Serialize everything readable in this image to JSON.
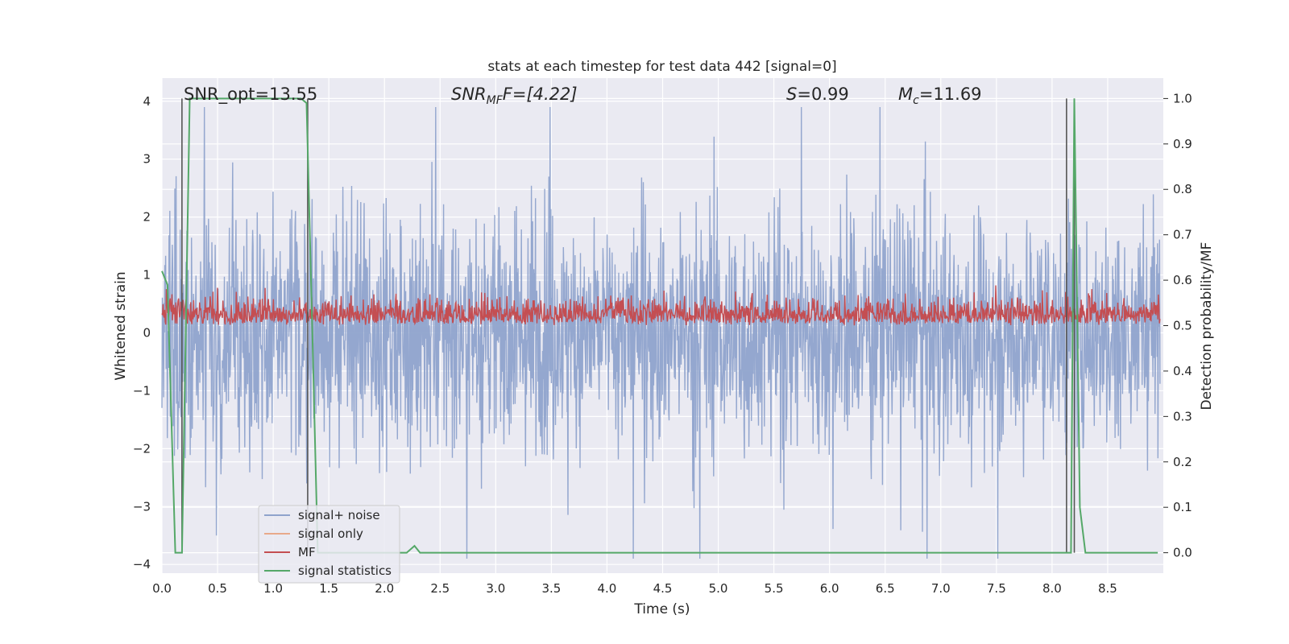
{
  "chart_data": {
    "type": "line",
    "title": "stats at each timestep for test data 442 [signal=0]",
    "xlabel": "Time (s)",
    "ylabel": "Whitened strain",
    "y2label": "Detection probability/MF",
    "xlim": [
      0.0,
      9.0
    ],
    "ylim": [
      -4.15,
      4.4
    ],
    "y2lim": [
      -0.045,
      1.045
    ],
    "xticks": [
      "0.0",
      "0.5",
      "1.0",
      "1.5",
      "2.0",
      "2.5",
      "3.0",
      "3.5",
      "4.0",
      "4.5",
      "5.0",
      "5.5",
      "6.0",
      "6.5",
      "7.0",
      "7.5",
      "8.0",
      "8.5"
    ],
    "yticks": [
      "−4",
      "−3",
      "−2",
      "−1",
      "0",
      "1",
      "2",
      "3",
      "4"
    ],
    "y2ticks": [
      "0.0",
      "0.1",
      "0.2",
      "0.3",
      "0.4",
      "0.5",
      "0.6",
      "0.7",
      "0.8",
      "0.9",
      "1.0"
    ],
    "grid": true,
    "legend_position": "lower-left",
    "annotations": {
      "snr_opt": "SNR_opt=13.55",
      "snr_mf_sym": "SNR",
      "snr_mf_sub": "MF",
      "snr_mf_rest": "F=[4.22]",
      "s_sym": "S",
      "s_rest": "=0.99",
      "mc_sym": "M",
      "mc_sub": "c",
      "mc_rest": "=11.69"
    },
    "series": [
      {
        "name": "signal+ noise",
        "color": "#8fa3cc",
        "description_values": "noise band approx ±1.5 with peaks to ±3.9",
        "envelope": [
          -3.9,
          3.9
        ]
      },
      {
        "name": "signal only",
        "color": "#e8a98a",
        "values": [
          0
        ]
      },
      {
        "name": "MF",
        "color": "#c44e52",
        "axis": "right",
        "range": [
          0.5,
          0.6
        ]
      },
      {
        "name": "signal statistics",
        "color": "#55a868",
        "axis": "right",
        "x": [
          0.0,
          0.05,
          0.12,
          0.18,
          0.25,
          0.3,
          1.25,
          1.3,
          1.35,
          1.4,
          2.2,
          2.27,
          2.32,
          2.4,
          8.1,
          8.17,
          8.2,
          8.25,
          8.3,
          8.95
        ],
        "values": [
          0.62,
          0.59,
          0.0,
          0.0,
          1.0,
          1.0,
          1.0,
          0.99,
          0.5,
          0.0,
          0.0,
          0.015,
          0.0,
          0.0,
          0.0,
          0.0,
          1.0,
          0.1,
          0.0,
          0.0
        ]
      }
    ],
    "vertical_markers": [
      0.18,
      1.31,
      8.13,
      8.2
    ]
  }
}
